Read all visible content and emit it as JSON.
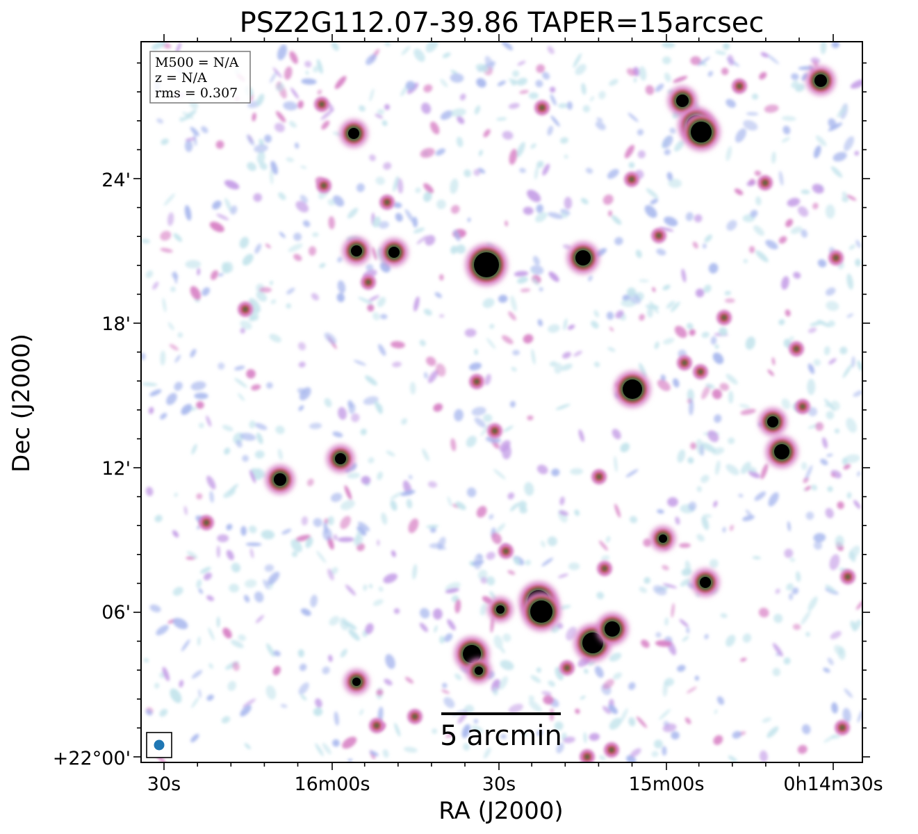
{
  "title": "PSZ2G112.07-39.86 TAPER=15arcsec",
  "xaxis": {
    "label": "RA (J2000)",
    "ticks": [
      "30s",
      "16m00s",
      "30s",
      "15m00s",
      "0h14m30s"
    ]
  },
  "yaxis": {
    "label": "Dec (J2000)",
    "ticks": [
      "+22°00'",
      "06'",
      "12'",
      "18'",
      "24'"
    ]
  },
  "legend": {
    "lines": [
      "M500 = N/A",
      "z = N/A",
      "rms = 0.307"
    ]
  },
  "scalebar": {
    "label": "5 arcmin"
  },
  "colors": {
    "noise_light": "#c3e4ec",
    "noise_blue": "#a9b8ee",
    "noise_purple": "#c39be6",
    "noise_pink": "#d77fc4",
    "source_red": "#c0504f",
    "source_green": "#3d6b3d",
    "source_core": "#000000",
    "beam": "#1f77b4"
  }
}
